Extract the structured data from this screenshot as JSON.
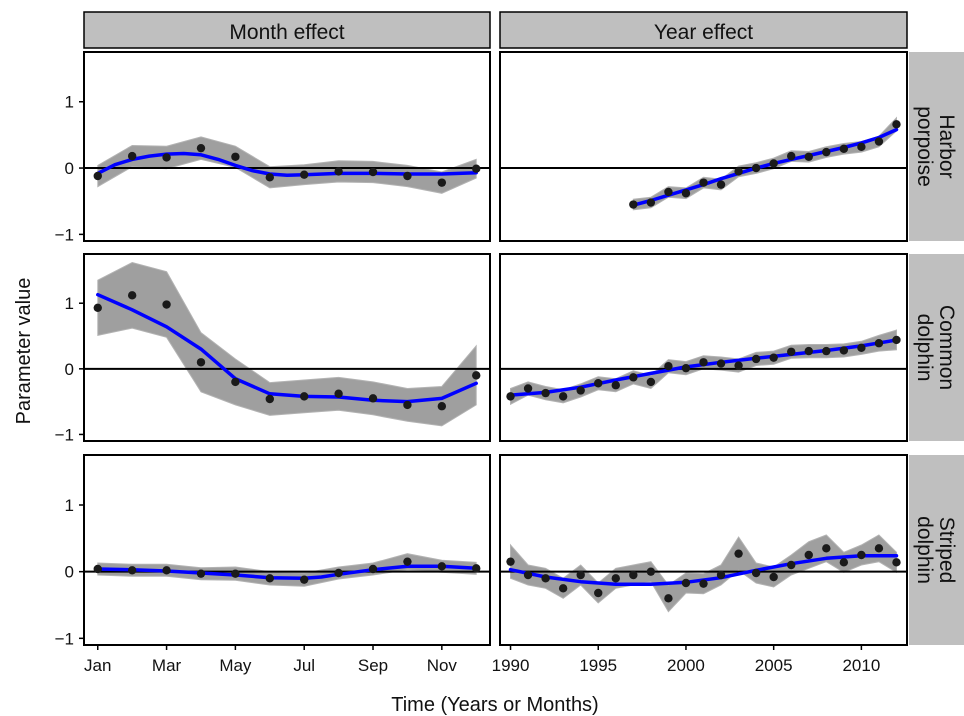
{
  "figure": {
    "ylabel": "Parameter value",
    "xlabel": "Time (Years or Months)",
    "column_titles": [
      "Month effect",
      "Year effect"
    ],
    "row_titles": [
      [
        "Harbor",
        "porpoise"
      ],
      [
        "Common",
        "dolphin"
      ],
      [
        "Striped",
        "dolphin"
      ]
    ]
  },
  "colors": {
    "point": "#1a1a1a",
    "smooth_line": "#0000ff",
    "ribbon": "#7f7f7f",
    "strip": "#bfbfbf",
    "zero_line": "#000000"
  },
  "chart_data": {
    "type": "line",
    "layout": "facet grid: rows = species, columns = effect type",
    "ylim": [
      -1.1,
      1.75
    ],
    "yticks": [
      -1,
      0,
      1
    ],
    "month_axis": {
      "xlim": [
        0.6,
        12.4
      ],
      "tick_values": [
        1,
        3,
        5,
        7,
        9,
        11
      ],
      "tick_labels": [
        "Jan",
        "Mar",
        "May",
        "Jul",
        "Sep",
        "Nov"
      ]
    },
    "year_axis": {
      "xlim": [
        1989.4,
        2012.6
      ],
      "tick_values": [
        1990,
        1995,
        2000,
        2005,
        2010
      ],
      "tick_labels": [
        "1990",
        "1995",
        "2000",
        "2005",
        "2010"
      ]
    },
    "panels": [
      {
        "row": 0,
        "col": 0,
        "species": "Harbor porpoise",
        "effect": "Month effect",
        "points": [
          [
            1,
            -0.12
          ],
          [
            2,
            0.18
          ],
          [
            3,
            0.16
          ],
          [
            4,
            0.3
          ],
          [
            5,
            0.17
          ],
          [
            6,
            -0.14
          ],
          [
            7,
            -0.1
          ],
          [
            8,
            -0.05
          ],
          [
            9,
            -0.06
          ],
          [
            10,
            -0.12
          ],
          [
            11,
            -0.22
          ],
          [
            12,
            -0.01
          ]
        ],
        "ribbon_half_width": [
          0.16,
          0.16,
          0.17,
          0.17,
          0.16,
          0.16,
          0.15,
          0.16,
          0.16,
          0.16,
          0.16,
          0.14
        ],
        "smooth": [
          [
            1,
            -0.08
          ],
          [
            1.5,
            0.05
          ],
          [
            2,
            0.13
          ],
          [
            2.5,
            0.18
          ],
          [
            3,
            0.21
          ],
          [
            3.5,
            0.22
          ],
          [
            4,
            0.2
          ],
          [
            4.5,
            0.13
          ],
          [
            5,
            0.04
          ],
          [
            5.5,
            -0.04
          ],
          [
            6,
            -0.09
          ],
          [
            6.5,
            -0.11
          ],
          [
            7,
            -0.1
          ],
          [
            8,
            -0.08
          ],
          [
            9,
            -0.08
          ],
          [
            10,
            -0.09
          ],
          [
            11,
            -0.09
          ],
          [
            12,
            -0.07
          ]
        ]
      },
      {
        "row": 0,
        "col": 1,
        "species": "Harbor porpoise",
        "effect": "Year effect",
        "points": [
          [
            1997,
            -0.55
          ],
          [
            1998,
            -0.52
          ],
          [
            1999,
            -0.36
          ],
          [
            2000,
            -0.38
          ],
          [
            2001,
            -0.22
          ],
          [
            2002,
            -0.25
          ],
          [
            2003,
            -0.05
          ],
          [
            2004,
            0.0
          ],
          [
            2005,
            0.07
          ],
          [
            2006,
            0.18
          ],
          [
            2007,
            0.17
          ],
          [
            2008,
            0.24
          ],
          [
            2009,
            0.29
          ],
          [
            2010,
            0.32
          ],
          [
            2011,
            0.4
          ],
          [
            2012,
            0.66
          ]
        ],
        "ribbon_half_width": [
          0.08,
          0.08,
          0.08,
          0.08,
          0.08,
          0.08,
          0.08,
          0.08,
          0.08,
          0.08,
          0.08,
          0.08,
          0.08,
          0.08,
          0.08,
          0.1
        ],
        "smooth": [
          [
            1997,
            -0.56
          ],
          [
            1998,
            -0.49
          ],
          [
            1999,
            -0.41
          ],
          [
            2000,
            -0.33
          ],
          [
            2001,
            -0.25
          ],
          [
            2002,
            -0.16
          ],
          [
            2003,
            -0.08
          ],
          [
            2004,
            0.0
          ],
          [
            2005,
            0.07
          ],
          [
            2006,
            0.13
          ],
          [
            2007,
            0.19
          ],
          [
            2008,
            0.25
          ],
          [
            2009,
            0.31
          ],
          [
            2010,
            0.38
          ],
          [
            2011,
            0.46
          ],
          [
            2012,
            0.58
          ]
        ]
      },
      {
        "row": 1,
        "col": 0,
        "species": "Common dolphin",
        "effect": "Month effect",
        "points": [
          [
            1,
            0.93
          ],
          [
            2,
            1.12
          ],
          [
            3,
            0.98
          ],
          [
            4,
            0.1
          ],
          [
            5,
            -0.2
          ],
          [
            6,
            -0.46
          ],
          [
            7,
            -0.42
          ],
          [
            8,
            -0.38
          ],
          [
            9,
            -0.45
          ],
          [
            10,
            -0.55
          ],
          [
            11,
            -0.57
          ],
          [
            12,
            -0.1
          ]
        ],
        "ribbon_half_width": [
          0.42,
          0.5,
          0.5,
          0.45,
          0.35,
          0.25,
          0.25,
          0.25,
          0.25,
          0.25,
          0.3,
          0.45
        ],
        "smooth": [
          [
            1,
            1.13
          ],
          [
            2,
            0.9
          ],
          [
            3,
            0.64
          ],
          [
            4,
            0.3
          ],
          [
            5,
            -0.15
          ],
          [
            6,
            -0.38
          ],
          [
            7,
            -0.42
          ],
          [
            8,
            -0.43
          ],
          [
            9,
            -0.48
          ],
          [
            10,
            -0.5
          ],
          [
            11,
            -0.45
          ],
          [
            12,
            -0.22
          ]
        ]
      },
      {
        "row": 1,
        "col": 1,
        "species": "Common dolphin",
        "effect": "Year effect",
        "points": [
          [
            1990,
            -0.42
          ],
          [
            1991,
            -0.3
          ],
          [
            1992,
            -0.37
          ],
          [
            1993,
            -0.42
          ],
          [
            1994,
            -0.33
          ],
          [
            1995,
            -0.22
          ],
          [
            1996,
            -0.25
          ],
          [
            1997,
            -0.13
          ],
          [
            1998,
            -0.2
          ],
          [
            1999,
            0.04
          ],
          [
            2000,
            0.01
          ],
          [
            2001,
            0.1
          ],
          [
            2002,
            0.08
          ],
          [
            2003,
            0.05
          ],
          [
            2004,
            0.15
          ],
          [
            2005,
            0.17
          ],
          [
            2006,
            0.26
          ],
          [
            2007,
            0.27
          ],
          [
            2008,
            0.27
          ],
          [
            2009,
            0.28
          ],
          [
            2010,
            0.32
          ],
          [
            2011,
            0.39
          ],
          [
            2012,
            0.44
          ]
        ],
        "ribbon_half_width": [
          0.12,
          0.1,
          0.1,
          0.1,
          0.1,
          0.1,
          0.1,
          0.1,
          0.1,
          0.1,
          0.1,
          0.1,
          0.1,
          0.1,
          0.1,
          0.1,
          0.1,
          0.1,
          0.1,
          0.1,
          0.1,
          0.12,
          0.15
        ],
        "smooth": [
          [
            1990,
            -0.4
          ],
          [
            1992,
            -0.36
          ],
          [
            1994,
            -0.28
          ],
          [
            1996,
            -0.17
          ],
          [
            1998,
            -0.07
          ],
          [
            2000,
            0.03
          ],
          [
            2002,
            0.1
          ],
          [
            2004,
            0.16
          ],
          [
            2006,
            0.22
          ],
          [
            2008,
            0.28
          ],
          [
            2010,
            0.35
          ],
          [
            2012,
            0.44
          ]
        ]
      },
      {
        "row": 2,
        "col": 0,
        "species": "Striped dolphin",
        "effect": "Month effect",
        "points": [
          [
            1,
            0.04
          ],
          [
            2,
            0.02
          ],
          [
            3,
            0.02
          ],
          [
            4,
            -0.03
          ],
          [
            5,
            -0.03
          ],
          [
            6,
            -0.1
          ],
          [
            7,
            -0.12
          ],
          [
            8,
            -0.02
          ],
          [
            9,
            0.04
          ],
          [
            10,
            0.15
          ],
          [
            11,
            0.08
          ],
          [
            12,
            0.05
          ]
        ],
        "ribbon_half_width": [
          0.09,
          0.09,
          0.09,
          0.09,
          0.1,
          0.1,
          0.1,
          0.09,
          0.09,
          0.12,
          0.09,
          0.09
        ],
        "smooth": [
          [
            1,
            0.04
          ],
          [
            2,
            0.03
          ],
          [
            3,
            0.01
          ],
          [
            4,
            -0.02
          ],
          [
            5,
            -0.05
          ],
          [
            6,
            -0.09
          ],
          [
            7,
            -0.1
          ],
          [
            7.5,
            -0.08
          ],
          [
            8,
            -0.04
          ],
          [
            9,
            0.03
          ],
          [
            10,
            0.08
          ],
          [
            11,
            0.08
          ],
          [
            12,
            0.05
          ]
        ]
      },
      {
        "row": 2,
        "col": 1,
        "species": "Striped dolphin",
        "effect": "Year effect",
        "points": [
          [
            1990,
            0.15
          ],
          [
            1991,
            -0.05
          ],
          [
            1992,
            -0.1
          ],
          [
            1993,
            -0.25
          ],
          [
            1994,
            -0.05
          ],
          [
            1995,
            -0.32
          ],
          [
            1996,
            -0.1
          ],
          [
            1997,
            -0.05
          ],
          [
            1998,
            0.0
          ],
          [
            1999,
            -0.4
          ],
          [
            2000,
            -0.17
          ],
          [
            2001,
            -0.18
          ],
          [
            2002,
            -0.05
          ],
          [
            2003,
            0.27
          ],
          [
            2004,
            -0.02
          ],
          [
            2005,
            -0.08
          ],
          [
            2006,
            0.1
          ],
          [
            2007,
            0.25
          ],
          [
            2008,
            0.35
          ],
          [
            2009,
            0.14
          ],
          [
            2010,
            0.25
          ],
          [
            2011,
            0.35
          ],
          [
            2012,
            0.14
          ]
        ],
        "ribbon_half_width": [
          0.25,
          0.15,
          0.15,
          0.15,
          0.15,
          0.15,
          0.15,
          0.15,
          0.15,
          0.2,
          0.15,
          0.15,
          0.15,
          0.25,
          0.15,
          0.15,
          0.15,
          0.2,
          0.2,
          0.15,
          0.15,
          0.2,
          0.15
        ],
        "smooth": [
          [
            1990,
            0.03
          ],
          [
            1992,
            -0.08
          ],
          [
            1994,
            -0.15
          ],
          [
            1996,
            -0.19
          ],
          [
            1998,
            -0.19
          ],
          [
            2000,
            -0.16
          ],
          [
            2002,
            -0.09
          ],
          [
            2004,
            0.02
          ],
          [
            2006,
            0.12
          ],
          [
            2008,
            0.2
          ],
          [
            2010,
            0.24
          ],
          [
            2012,
            0.24
          ]
        ]
      }
    ]
  }
}
